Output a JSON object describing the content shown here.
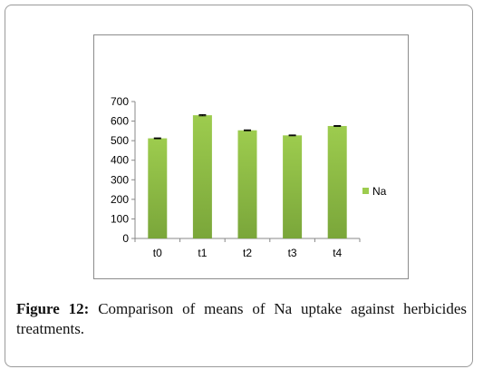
{
  "figure": {
    "label": "Figure 12:",
    "caption": "Comparison of means of Na uptake against herbicides treatments."
  },
  "chart_data": {
    "type": "bar",
    "categories": [
      "t0",
      "t1",
      "t2",
      "t3",
      "t4"
    ],
    "series": [
      {
        "name": "Na",
        "values": [
          512,
          630,
          553,
          527,
          575
        ],
        "errors": [
          2,
          3,
          2,
          2,
          2
        ]
      }
    ],
    "yticks": [
      "0",
      "100",
      "200",
      "300",
      "400",
      "500",
      "600",
      "700"
    ],
    "ylim": [
      0,
      700
    ],
    "legend_position": "right",
    "grid": false,
    "colors": {
      "bar_top": "#9dcc4e",
      "bar_bottom": "#7aa63a",
      "axis": "#888888"
    }
  }
}
